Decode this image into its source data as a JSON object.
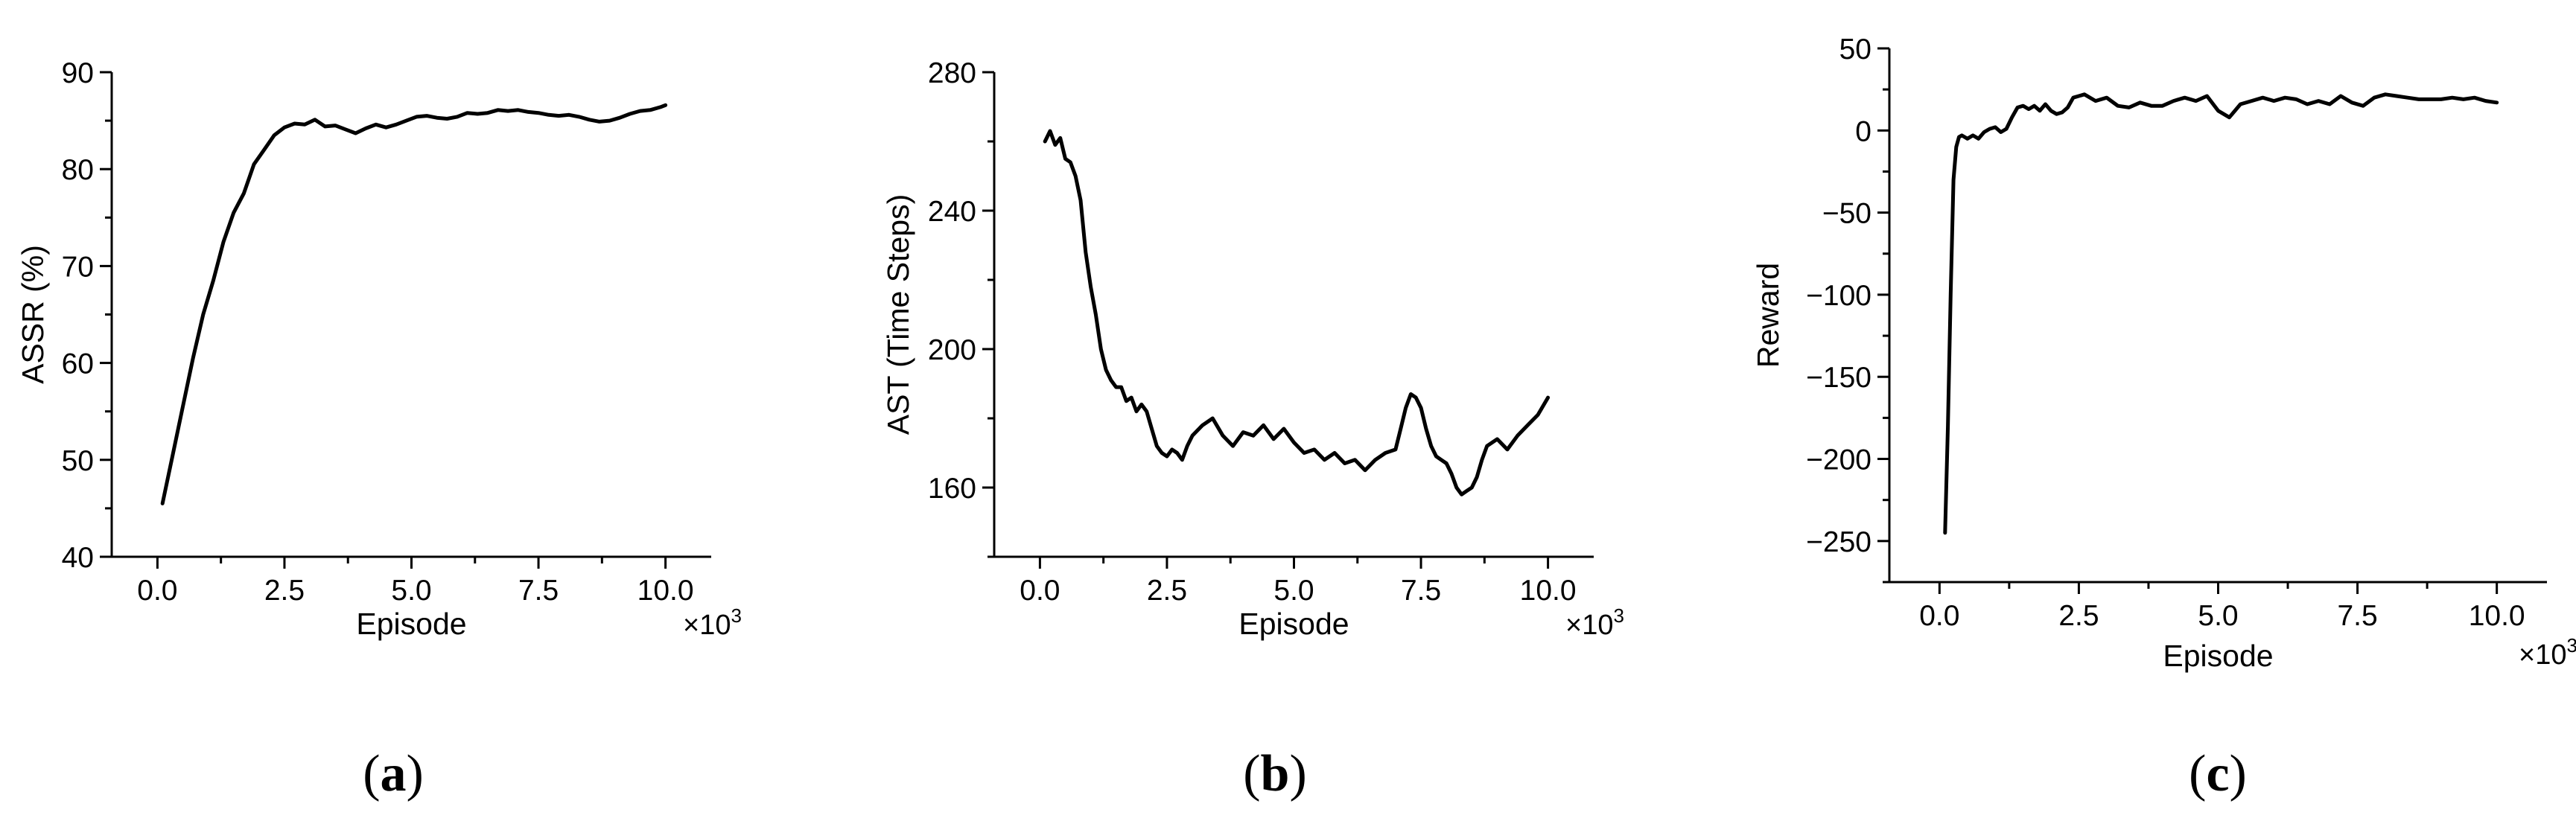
{
  "chart_data": [
    {
      "type": "line",
      "panel": "(a)",
      "panel_letter": "a",
      "xlabel": "Episode",
      "ylabel": "ASSR (%)",
      "x_multiplier": "×10",
      "x_multiplier_exp": "3",
      "xlim": [
        -0.9,
        10.9
      ],
      "ylim": [
        40,
        90
      ],
      "xticks": [
        0.0,
        2.5,
        5.0,
        7.5,
        10.0
      ],
      "xtick_labels": [
        "0.0",
        "2.5",
        "5.0",
        "7.5",
        "10.0"
      ],
      "yticks": [
        40,
        50,
        60,
        70,
        80,
        90
      ],
      "ytick_labels": [
        "40",
        "50",
        "60",
        "70",
        "80",
        "90"
      ],
      "series": [
        {
          "color": "#000000",
          "x": [
            0.1,
            0.3,
            0.5,
            0.7,
            0.9,
            1.1,
            1.3,
            1.5,
            1.7,
            1.9,
            2.1,
            2.3,
            2.5,
            2.7,
            2.9,
            3.1,
            3.3,
            3.5,
            3.7,
            3.9,
            4.1,
            4.3,
            4.5,
            4.7,
            4.9,
            5.1,
            5.3,
            5.5,
            5.7,
            5.9,
            6.1,
            6.3,
            6.5,
            6.7,
            6.9,
            7.1,
            7.3,
            7.5,
            7.7,
            7.9,
            8.1,
            8.3,
            8.5,
            8.7,
            8.9,
            9.1,
            9.3,
            9.5,
            9.7,
            9.9,
            10.0
          ],
          "y": [
            45.5,
            50.5,
            55.5,
            60.5,
            65.0,
            68.5,
            72.5,
            75.5,
            77.5,
            80.5,
            82.0,
            83.5,
            84.3,
            84.7,
            84.6,
            85.1,
            84.4,
            84.5,
            84.1,
            83.7,
            84.2,
            84.6,
            84.3,
            84.6,
            85.0,
            85.4,
            85.5,
            85.3,
            85.2,
            85.4,
            85.8,
            85.7,
            85.8,
            86.1,
            86.0,
            86.1,
            85.9,
            85.8,
            85.6,
            85.5,
            85.6,
            85.4,
            85.1,
            84.9,
            85.0,
            85.3,
            85.7,
            86.0,
            86.1,
            86.4,
            86.6
          ]
        }
      ]
    },
    {
      "type": "line",
      "panel": "(b)",
      "panel_letter": "b",
      "xlabel": "Episode",
      "ylabel": "AST (Time Steps)",
      "x_multiplier": "×10",
      "x_multiplier_exp": "3",
      "xlim": [
        -0.9,
        10.9
      ],
      "ylim": [
        140,
        280
      ],
      "xticks": [
        0.0,
        2.5,
        5.0,
        7.5,
        10.0
      ],
      "xtick_labels": [
        "0.0",
        "2.5",
        "5.0",
        "7.5",
        "10.0"
      ],
      "yticks": [
        160,
        200,
        240,
        280
      ],
      "ytick_labels": [
        "160",
        "200",
        "240",
        "280"
      ],
      "series": [
        {
          "color": "#000000",
          "x": [
            0.1,
            0.2,
            0.3,
            0.4,
            0.5,
            0.6,
            0.7,
            0.8,
            0.9,
            1.0,
            1.1,
            1.2,
            1.3,
            1.4,
            1.5,
            1.6,
            1.7,
            1.8,
            1.9,
            2.0,
            2.1,
            2.2,
            2.3,
            2.4,
            2.5,
            2.6,
            2.7,
            2.8,
            2.9,
            3.0,
            3.2,
            3.4,
            3.6,
            3.8,
            4.0,
            4.2,
            4.4,
            4.6,
            4.8,
            5.0,
            5.2,
            5.4,
            5.6,
            5.8,
            6.0,
            6.2,
            6.4,
            6.6,
            6.8,
            7.0,
            7.1,
            7.2,
            7.3,
            7.4,
            7.5,
            7.6,
            7.7,
            7.8,
            7.9,
            8.0,
            8.1,
            8.2,
            8.3,
            8.4,
            8.5,
            8.6,
            8.7,
            8.8,
            9.0,
            9.2,
            9.4,
            9.6,
            9.8,
            10.0
          ],
          "y": [
            260,
            263,
            259,
            261,
            255,
            254,
            250,
            243,
            228,
            218,
            210,
            200,
            194,
            191,
            189,
            189,
            185,
            186,
            182,
            184,
            182,
            177,
            172,
            170,
            169,
            171,
            170,
            168,
            172,
            175,
            178,
            180,
            175,
            172,
            176,
            175,
            178,
            174,
            177,
            173,
            170,
            171,
            168,
            170,
            167,
            168,
            165,
            168,
            170,
            171,
            177,
            183,
            187,
            186,
            183,
            177,
            172,
            169,
            168,
            167,
            164,
            160,
            158,
            159,
            160,
            163,
            168,
            172,
            174,
            171,
            175,
            178,
            181,
            186
          ]
        }
      ]
    },
    {
      "type": "line",
      "panel": "(c)",
      "panel_letter": "c",
      "xlabel": "Episode",
      "ylabel": "Reward",
      "x_multiplier": "×10",
      "x_multiplier_exp": "3",
      "xlim": [
        -0.9,
        10.9
      ],
      "ylim": [
        -275,
        50
      ],
      "xticks": [
        0.0,
        2.5,
        5.0,
        7.5,
        10.0
      ],
      "xtick_labels": [
        "0.0",
        "2.5",
        "5.0",
        "7.5",
        "10.0"
      ],
      "yticks": [
        -250,
        -200,
        -150,
        -100,
        -50,
        0,
        50
      ],
      "ytick_labels": [
        "−250",
        "−200",
        "−150",
        "−100",
        "−50",
        "0",
        "50"
      ],
      "series": [
        {
          "color": "#000000",
          "x": [
            0.1,
            0.15,
            0.2,
            0.25,
            0.3,
            0.35,
            0.4,
            0.5,
            0.6,
            0.7,
            0.8,
            0.9,
            1.0,
            1.1,
            1.2,
            1.3,
            1.4,
            1.5,
            1.6,
            1.7,
            1.8,
            1.9,
            2.0,
            2.1,
            2.2,
            2.3,
            2.4,
            2.5,
            2.6,
            2.8,
            3.0,
            3.2,
            3.4,
            3.6,
            3.8,
            4.0,
            4.2,
            4.4,
            4.6,
            4.8,
            5.0,
            5.2,
            5.4,
            5.6,
            5.8,
            6.0,
            6.2,
            6.4,
            6.6,
            6.8,
            7.0,
            7.2,
            7.4,
            7.6,
            7.8,
            8.0,
            8.2,
            8.4,
            8.6,
            8.8,
            9.0,
            9.2,
            9.4,
            9.6,
            9.8,
            10.0
          ],
          "y": [
            -245,
            -180,
            -100,
            -30,
            -10,
            -4,
            -3,
            -5,
            -3,
            -5,
            -1,
            1,
            2,
            -1,
            1,
            8,
            14,
            15,
            13,
            15,
            12,
            16,
            12,
            10,
            11,
            14,
            20,
            21,
            22,
            18,
            20,
            15,
            14,
            17,
            15,
            15,
            18,
            20,
            18,
            21,
            12,
            8,
            16,
            18,
            20,
            18,
            20,
            19,
            16,
            18,
            16,
            21,
            17,
            15,
            20,
            22,
            21,
            20,
            19,
            19,
            19,
            20,
            19,
            20,
            18,
            17
          ]
        }
      ]
    }
  ]
}
